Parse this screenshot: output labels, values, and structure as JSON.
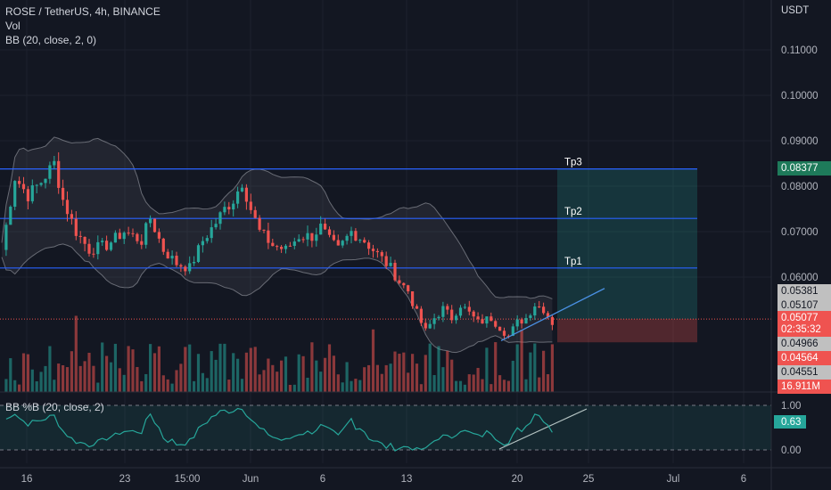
{
  "header": {
    "symbol_line": "ROSE / TetherUS, 4h, BINANCE",
    "indicator_vol": "Vol",
    "indicator_bb": "BB (20, close, 2, 0)",
    "osc_label": "BB %B (20, close, 2)",
    "currency": "USDT"
  },
  "chart_data": {
    "type": "candlestick",
    "title": "ROSE / TetherUS, 4h, BINANCE",
    "price_axis": {
      "ticks": [
        "0.11000",
        "0.10000",
        "0.09000",
        "0.08000",
        "0.07000",
        "0.06000"
      ],
      "tick_values": [
        0.11,
        0.1,
        0.09,
        0.08,
        0.07,
        0.06
      ]
    },
    "time_axis": {
      "ticks": [
        "16",
        "23",
        "15:00",
        "Jun",
        "6",
        "13",
        "20",
        "25",
        "Jul",
        "6"
      ]
    },
    "price_path": [
      [
        0,
        0.066
      ],
      [
        3,
        0.082
      ],
      [
        6,
        0.078
      ],
      [
        9,
        0.081
      ],
      [
        12,
        0.085
      ],
      [
        14,
        0.077
      ],
      [
        17,
        0.07
      ],
      [
        20,
        0.066
      ],
      [
        24,
        0.067
      ],
      [
        28,
        0.07
      ],
      [
        32,
        0.068
      ],
      [
        34,
        0.073
      ],
      [
        37,
        0.066
      ],
      [
        40,
        0.063
      ],
      [
        43,
        0.062
      ],
      [
        46,
        0.068
      ],
      [
        49,
        0.072
      ],
      [
        51,
        0.075
      ],
      [
        53,
        0.077
      ],
      [
        55,
        0.081
      ],
      [
        57,
        0.075
      ],
      [
        59,
        0.07
      ],
      [
        62,
        0.067
      ],
      [
        65,
        0.066
      ],
      [
        68,
        0.069
      ],
      [
        71,
        0.069
      ],
      [
        73,
        0.071
      ],
      [
        75,
        0.068
      ],
      [
        77,
        0.066
      ],
      [
        80,
        0.07
      ],
      [
        83,
        0.068
      ],
      [
        86,
        0.065
      ],
      [
        89,
        0.062
      ],
      [
        91,
        0.059
      ],
      [
        93,
        0.057
      ],
      [
        95,
        0.052
      ],
      [
        97,
        0.048
      ],
      [
        99,
        0.051
      ],
      [
        101,
        0.053
      ],
      [
        103,
        0.051
      ],
      [
        105,
        0.054
      ],
      [
        107,
        0.052
      ],
      [
        109,
        0.05
      ],
      [
        112,
        0.051
      ],
      [
        114,
        0.049
      ],
      [
        116,
        0.047
      ],
      [
        118,
        0.05
      ],
      [
        120,
        0.051
      ],
      [
        122,
        0.054
      ],
      [
        124,
        0.053
      ],
      [
        126,
        0.05
      ]
    ],
    "levels": [
      {
        "name": "Tp3",
        "value": 0.0838
      },
      {
        "name": "Tp2",
        "value": 0.0729
      },
      {
        "name": "Tp1",
        "value": 0.062
      }
    ],
    "position": {
      "entry": 0.05077,
      "stop": 0.04564,
      "target": 0.08377
    },
    "price_labels": [
      {
        "text": "0.08377",
        "color": "#1e7a5a"
      },
      {
        "text": "0.05381",
        "color": "#c0c0c0"
      },
      {
        "text": "0.05107",
        "color": "#c0c0c0"
      },
      {
        "text": "0.05077",
        "color": "#ef5350"
      },
      {
        "text": "02:35:32",
        "color": "#ef5350"
      },
      {
        "text": "0.04966",
        "color": "#c0c0c0"
      },
      {
        "text": "0.04564",
        "color": "#ef5350"
      },
      {
        "text": "0.04551",
        "color": "#c0c0c0"
      },
      {
        "text": "16.911M",
        "color": "#ef5350"
      }
    ],
    "osc_axis": {
      "ticks": [
        "1.00",
        "0.00"
      ]
    },
    "osc_current": "0.63",
    "colors": {
      "up": "#26a69a",
      "down": "#ef5350",
      "level": "#2962ff",
      "bb": "#8a8d96",
      "osc": "#26a69a"
    }
  }
}
